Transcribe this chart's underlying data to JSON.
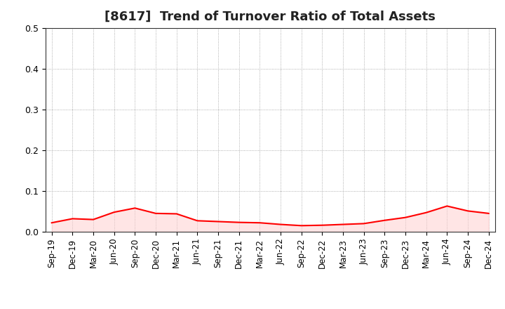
{
  "title": "[8617]  Trend of Turnover Ratio of Total Assets",
  "x_labels": [
    "Sep-19",
    "Dec-19",
    "Mar-20",
    "Jun-20",
    "Sep-20",
    "Dec-20",
    "Mar-21",
    "Jun-21",
    "Sep-21",
    "Dec-21",
    "Mar-22",
    "Jun-22",
    "Sep-22",
    "Dec-22",
    "Mar-23",
    "Jun-23",
    "Sep-23",
    "Dec-23",
    "Mar-24",
    "Jun-24",
    "Sep-24",
    "Dec-24"
  ],
  "values": [
    0.022,
    0.032,
    0.03,
    0.048,
    0.058,
    0.045,
    0.044,
    0.027,
    0.025,
    0.023,
    0.022,
    0.018,
    0.015,
    0.016,
    0.018,
    0.02,
    0.028,
    0.035,
    0.047,
    0.063,
    0.051,
    0.045
  ],
  "ylim": [
    0.0,
    0.5
  ],
  "yticks": [
    0.0,
    0.1,
    0.2,
    0.3,
    0.4,
    0.5
  ],
  "line_color": "#ff0000",
  "line_width": 1.5,
  "background_color": "#ffffff",
  "grid_color": "#999999",
  "title_fontsize": 13,
  "tick_fontsize": 8.5,
  "fill_color": "#ffcccc",
  "fill_alpha": 0.5
}
